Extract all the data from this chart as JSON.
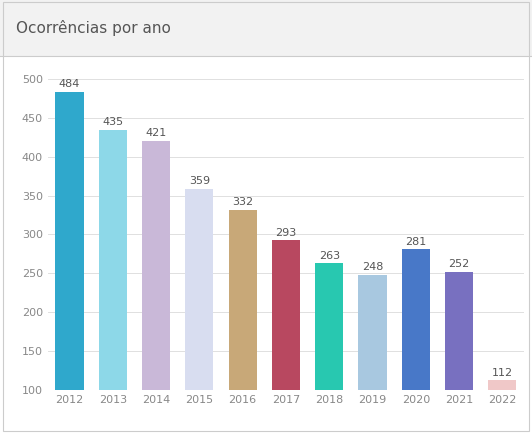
{
  "title": "Ocorrências por ano",
  "years": [
    "2012",
    "2013",
    "2014",
    "2015",
    "2016",
    "2017",
    "2018",
    "2019",
    "2020",
    "2021",
    "2022"
  ],
  "values": [
    484,
    435,
    421,
    359,
    332,
    293,
    263,
    248,
    281,
    252,
    112
  ],
  "bar_colors": [
    "#2fa8cc",
    "#8dd8e8",
    "#c9b8d8",
    "#d8ddf0",
    "#c8a878",
    "#b84860",
    "#28c8b0",
    "#a8c8e0",
    "#4878c8",
    "#7870c0",
    "#f0c8c8"
  ],
  "ylim": [
    100,
    510
  ],
  "yticks": [
    100,
    150,
    200,
    250,
    300,
    350,
    400,
    450,
    500
  ],
  "background_color": "#ffffff",
  "plot_bg_color": "#ffffff",
  "grid_color": "#e0e0e0",
  "header_color": "#f2f2f2",
  "separator_color": "#cccccc",
  "title_fontsize": 11,
  "tick_fontsize": 8,
  "value_fontsize": 8,
  "title_color": "#555555",
  "tick_color": "#888888",
  "value_color": "#555555"
}
